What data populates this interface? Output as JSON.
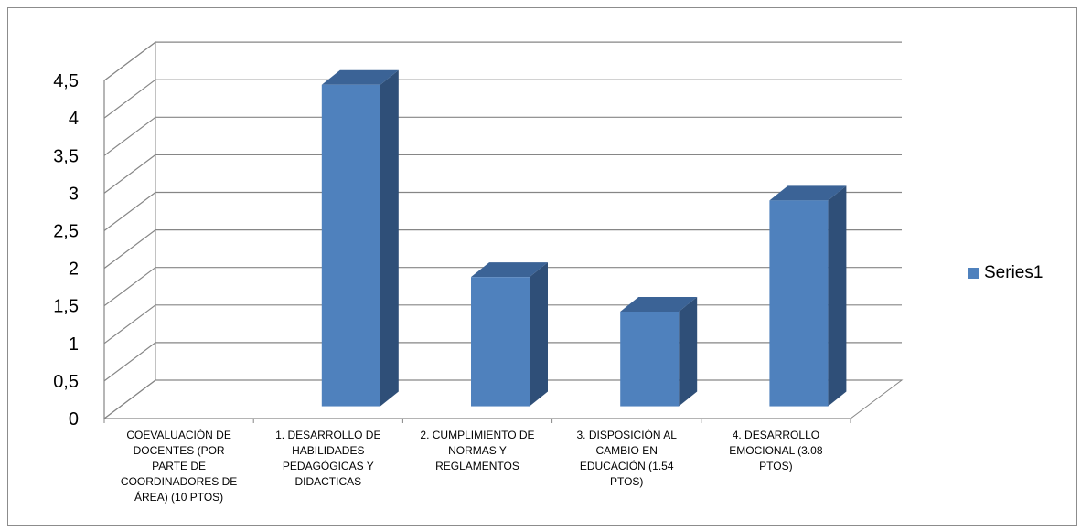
{
  "chart_data": {
    "type": "bar",
    "three_d": true,
    "categories": [
      "COEVALUACIÓN DE DOCENTES  (POR PARTE DE COORDINADORES DE ÁREA) (10 PTOS)",
      "1. DESARROLLO DE HABILIDADES PEDAGÓGICAS Y DIDACTICAS",
      "2. CUMPLIMIENTO DE NORMAS Y REGLAMENTOS",
      "3. DISPOSICIÓN AL CAMBIO EN EDUCACIÓN (1.54 PTOS)",
      "4. DESARROLLO EMOCIONAL (3.08 PTOS)"
    ],
    "series": [
      {
        "name": "Series1",
        "values": [
          0,
          4.28,
          1.72,
          1.26,
          2.74
        ]
      }
    ],
    "ylim": [
      0,
      4.5
    ],
    "yticks": [
      "0",
      "0,5",
      "1",
      "1,5",
      "2",
      "2,5",
      "3",
      "3,5",
      "4",
      "4,5"
    ],
    "grid": true,
    "legend_position": "right",
    "colors": {
      "bar_front": "#4f81bd",
      "bar_side": "#2f4f78",
      "bar_top": "#3b6396",
      "grid": "#868686"
    }
  }
}
